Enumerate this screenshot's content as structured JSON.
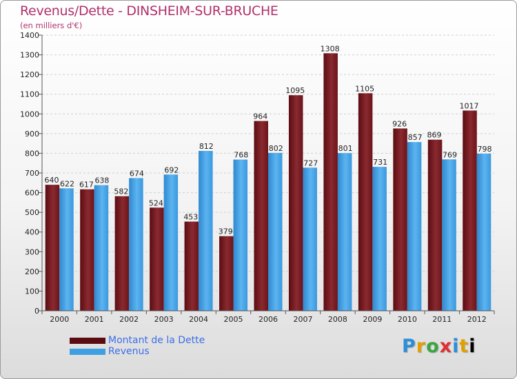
{
  "chart_data": {
    "type": "bar",
    "title": "Revenus/Dette - DINSHEIM-SUR-BRUCHE",
    "subtitle": "(en milliers d'€)",
    "xlabel": "",
    "ylabel": "",
    "ylim": [
      0,
      1400
    ],
    "yticks": [
      0,
      100,
      200,
      300,
      400,
      500,
      600,
      700,
      800,
      900,
      1000,
      1100,
      1200,
      1300,
      1400
    ],
    "grid": true,
    "legend_position": "bottom-left",
    "categories": [
      "2000",
      "2001",
      "2002",
      "2003",
      "2004",
      "2005",
      "2006",
      "2007",
      "2008",
      "2009",
      "2010",
      "2011",
      "2012"
    ],
    "series": [
      {
        "name": "Montant de la Dette",
        "color": "#7a1a22",
        "values": [
          640,
          617,
          582,
          524,
          453,
          379,
          964,
          1095,
          1308,
          1105,
          926,
          869,
          1017
        ]
      },
      {
        "name": "Revenus",
        "color": "#3f9fe3",
        "values": [
          622,
          638,
          674,
          692,
          812,
          768,
          802,
          727,
          801,
          731,
          857,
          769,
          798
        ]
      }
    ]
  },
  "logo": {
    "letters": [
      "P",
      "r",
      "o",
      "x",
      "i",
      "t",
      "i"
    ]
  }
}
